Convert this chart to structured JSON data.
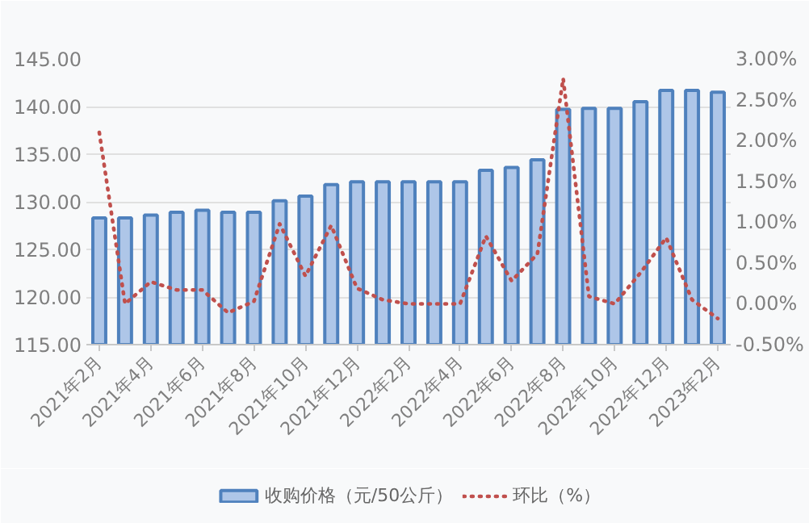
{
  "chart_data": {
    "type": "bar",
    "categories": [
      "2021年2月",
      null,
      "2021年4月",
      null,
      "2021年6月",
      null,
      "2021年8月",
      null,
      "2021年10月",
      null,
      "2021年12月",
      null,
      "2022年2月",
      null,
      "2022年4月",
      null,
      "2022年6月",
      null,
      "2022年8月",
      null,
      "2022年10月",
      null,
      "2022年12月",
      null,
      "2023年2月"
    ],
    "series": [
      {
        "name": "收购价格（元/50公斤）",
        "color": "#4f81bd",
        "values": [
          128.3,
          128.3,
          128.6,
          128.9,
          129.1,
          128.9,
          128.9,
          130.1,
          130.6,
          131.8,
          132.1,
          132.1,
          132.1,
          132.1,
          132.1,
          133.3,
          133.6,
          134.4,
          139.7,
          139.8,
          139.8,
          140.5,
          141.7,
          141.7,
          141.5
        ]
      },
      {
        "name": "环比（%）",
        "type": "line",
        "axis": "y2",
        "color": "#c0504d",
        "line_style": "dotted",
        "values": [
          2.1,
          0.0,
          0.27,
          0.17,
          0.17,
          -0.11,
          0.03,
          0.98,
          0.34,
          0.96,
          0.19,
          0.05,
          0.0,
          0.0,
          0.0,
          0.83,
          0.28,
          0.61,
          2.76,
          0.09,
          0.0,
          0.38,
          0.81,
          0.05,
          -0.18
        ]
      }
    ],
    "ylim": [
      115,
      145
    ],
    "yticks": [
      {
        "value": 115,
        "label": "115.00"
      },
      {
        "value": 120,
        "label": "120.00"
      },
      {
        "value": 125,
        "label": "125.00"
      },
      {
        "value": 130,
        "label": "130.00"
      },
      {
        "value": 135,
        "label": "135.00"
      },
      {
        "value": 140,
        "label": "140.00"
      },
      {
        "value": 145,
        "label": "145.00"
      }
    ],
    "y2lim": [
      -0.5,
      3
    ],
    "y2ticks": [
      {
        "value": -0.5,
        "label": "-0.50%"
      },
      {
        "value": 0,
        "label": "0.00%"
      },
      {
        "value": 0.5,
        "label": "0.50%"
      },
      {
        "value": 1,
        "label": "1.00%"
      },
      {
        "value": 1.5,
        "label": "1.50%"
      },
      {
        "value": 2,
        "label": "2.00%"
      },
      {
        "value": 2.5,
        "label": "2.50%"
      },
      {
        "value": 3,
        "label": "3.00%"
      }
    ],
    "grid": "y",
    "legend": "bottom"
  }
}
